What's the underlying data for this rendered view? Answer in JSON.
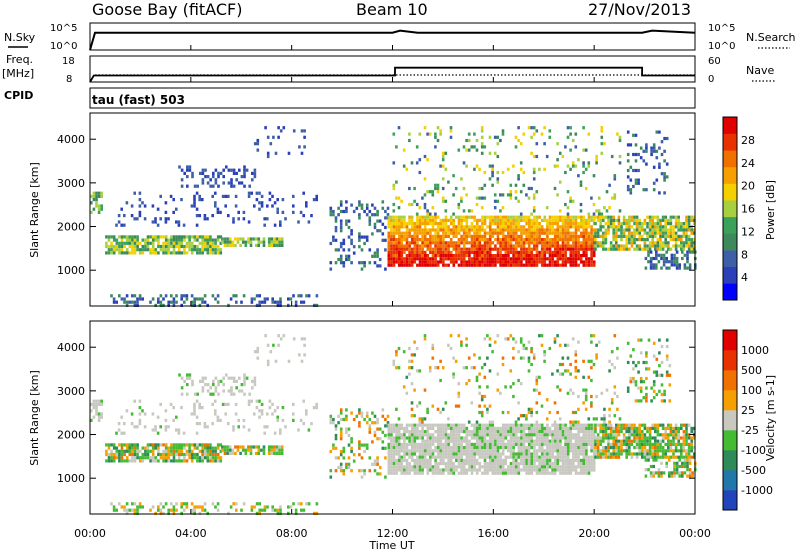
{
  "header": {
    "radar": "Goose Bay (fitACF)",
    "beam": "Beam 10",
    "date": "27/Nov/2013"
  },
  "noise_panel": {
    "left_label": "N.Sky",
    "right_label": "N.Search",
    "left_ticks": [
      "10^5",
      "10^0"
    ],
    "right_ticks": [
      "10^5",
      "10^0"
    ]
  },
  "freq_panel": {
    "left_label_1": "Freq.",
    "left_label_2": "[MHz]",
    "right_label": "Nave",
    "left_ticks": [
      "18",
      "8"
    ],
    "right_ticks": [
      "60",
      "0"
    ]
  },
  "cpid": {
    "label": "CPID",
    "value": "tau (fast) 503"
  },
  "time_axis": {
    "label": "Time UT",
    "ticks": [
      "00:00",
      "04:00",
      "08:00",
      "12:00",
      "16:00",
      "20:00",
      "00:00"
    ]
  },
  "chart_data": [
    {
      "type": "line",
      "name": "noise",
      "x_hours": [
        0,
        0.2,
        12,
        12.3,
        13,
        21.9,
        22.3,
        24
      ],
      "sky_level": [
        0,
        3.2,
        3.2,
        3.6,
        3.2,
        3.2,
        3.6,
        3.2
      ],
      "ylim_log10": [
        0,
        5
      ]
    },
    {
      "type": "line",
      "name": "frequency",
      "x_hours": [
        0,
        0.15,
        12.1,
        12.1,
        21.9,
        21.9,
        24
      ],
      "freq_mhz": [
        8,
        10.5,
        10.5,
        13.5,
        13.5,
        10.5,
        10.5
      ],
      "ylim": [
        8,
        18
      ],
      "nave_ylim": [
        0,
        60
      ]
    },
    {
      "type": "heatmap",
      "name": "power",
      "ylabel": "Slant Range [km]",
      "yticks": [
        "4000",
        "3000",
        "2000",
        "1000"
      ],
      "ylim": [
        180,
        4600
      ],
      "xlim": [
        0,
        24
      ],
      "colorbar_label": "Power [dB]",
      "colorbar_ticks": [
        "28",
        "24",
        "20",
        "16",
        "12",
        "8",
        "4"
      ],
      "colors": [
        "#0000ff",
        "#2b3fb8",
        "#3c5fa6",
        "#3c8a5c",
        "#3aa05a",
        "#a7d040",
        "#f5d000",
        "#f5a000",
        "#f07000",
        "#e83000",
        "#e00000"
      ]
    },
    {
      "type": "heatmap",
      "name": "velocity",
      "ylabel": "Slant Range [km]",
      "yticks": [
        "4000",
        "3000",
        "2000",
        "1000"
      ],
      "ylim": [
        180,
        4600
      ],
      "xlim": [
        0,
        24
      ],
      "colorbar_label": "Velocity [m s-1]",
      "colorbar_ticks": [
        "1000",
        "500",
        "100",
        "25",
        "-25",
        "-100",
        "-500",
        "-1000"
      ],
      "colors": [
        "#2244bb",
        "#2277aa",
        "#2e8b57",
        "#44bb33",
        "#c8c8c0",
        "#f5a000",
        "#f07000",
        "#e83000",
        "#e00000"
      ]
    }
  ]
}
